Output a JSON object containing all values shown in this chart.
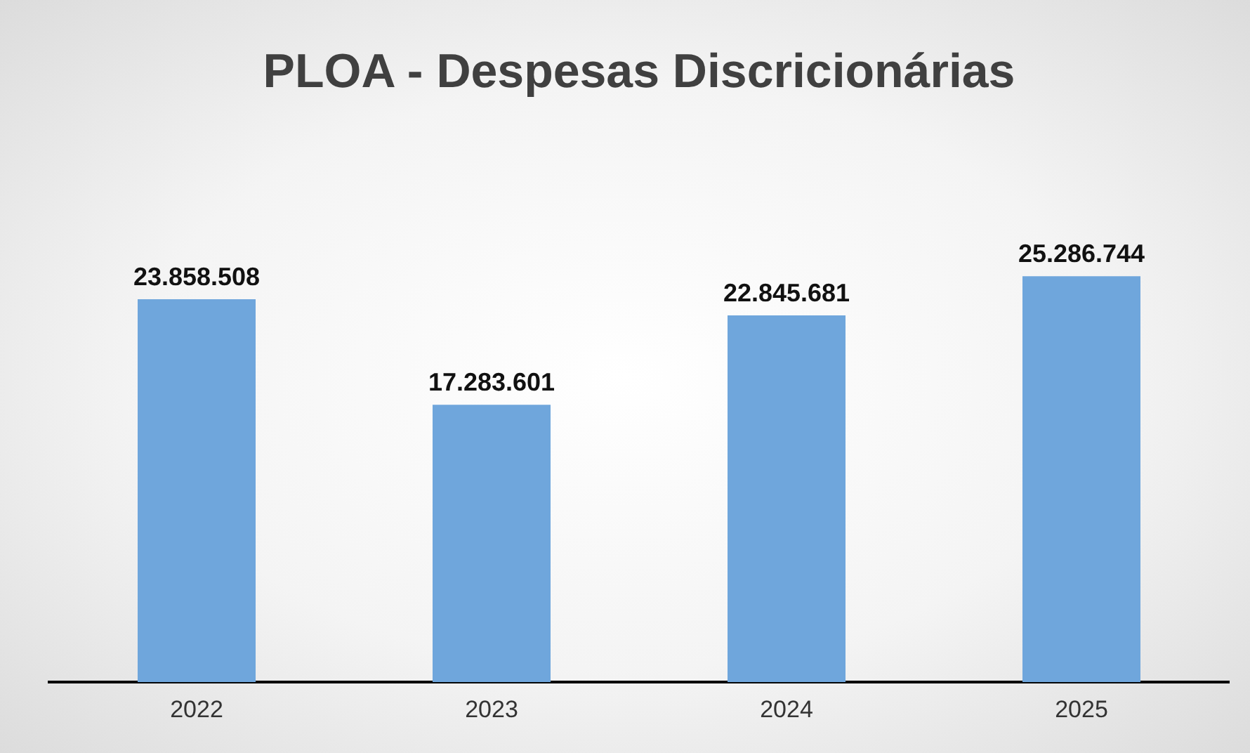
{
  "chart_data": {
    "type": "bar",
    "title": "PLOA - Despesas Discricionárias",
    "categories": [
      "2022",
      "2023",
      "2024",
      "2025"
    ],
    "values": [
      23858508,
      17283601,
      22845681,
      25286744
    ],
    "value_labels": [
      "23.858.508",
      "17.283.601",
      "22.845.681",
      "25.286.744"
    ],
    "color": "#6fa6dc"
  }
}
